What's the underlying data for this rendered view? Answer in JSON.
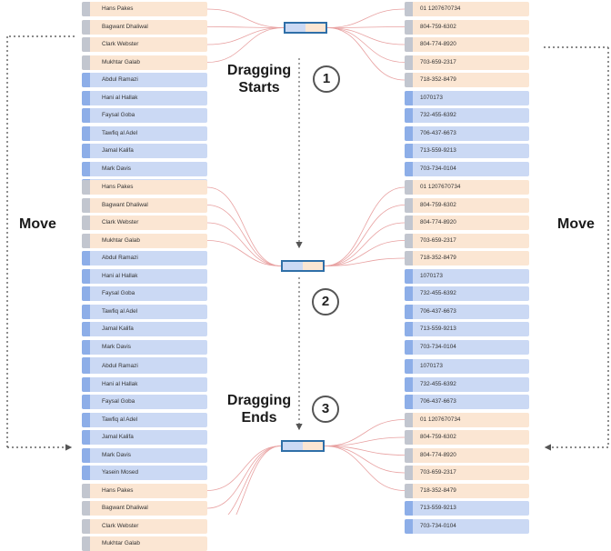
{
  "names_a": [
    "Hans Pakes",
    "Bagwant Dhaliwal",
    "Clark Webster",
    "Mukhtar Galab"
  ],
  "names_b": [
    "Abdul Ramazi",
    "Hani al Hallak",
    "Faysal Goba",
    "Tawfiq al Adel",
    "Jamal Kalifa",
    "Mark Davis",
    "Yasein Mosed"
  ],
  "phones_a": [
    "01 1207670734",
    "804-759-6302",
    "804-774-8920",
    "703-659-2317",
    "718-352-8479"
  ],
  "phones_b": [
    "1070173",
    "732-455-6392",
    "706-437-6673",
    "713-559-9213",
    "703-734-0104"
  ],
  "labels": {
    "stage1": "Dragging\nStarts",
    "stage3": "Dragging\nEnds",
    "step1": "1",
    "step2": "2",
    "step3": "3",
    "move_left": "Move",
    "move_right": "Move"
  },
  "colors": {
    "peach": "#fbe6d3",
    "blue": "#cbd9f4",
    "link": "#e8a1a1",
    "box_border": "#2f6fa8"
  }
}
